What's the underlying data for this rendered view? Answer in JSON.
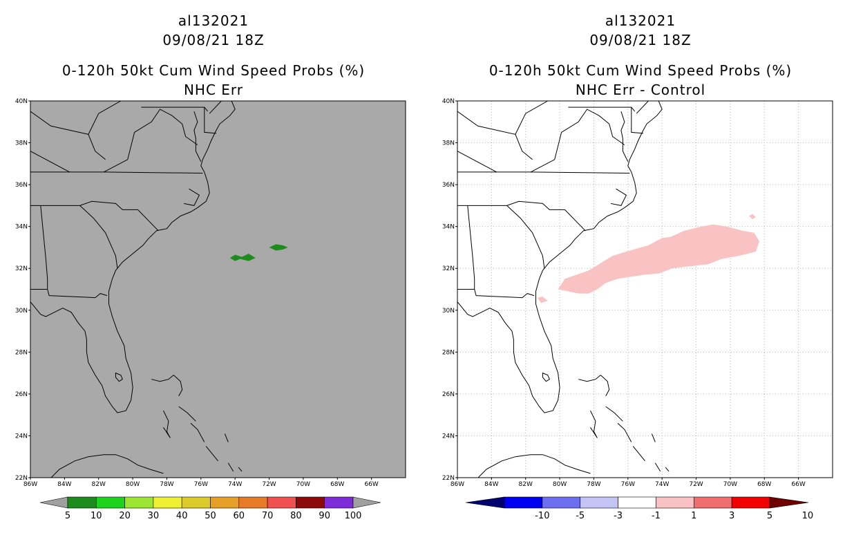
{
  "left_panel": {
    "storm_id": "al132021",
    "date_time": "09/08/21 18Z",
    "product": "0-120h 50kt Cum Wind Speed Probs (%)",
    "subtitle": "NHC Err",
    "colorbar": {
      "labels": [
        "5",
        "10",
        "20",
        "30",
        "40",
        "50",
        "60",
        "70",
        "80",
        "90",
        "100"
      ],
      "colors": [
        "#a0a0a0",
        "#1c8c1c",
        "#1ed21e",
        "#9be632",
        "#f0f032",
        "#dccb2a",
        "#e6a028",
        "#e87b28",
        "#f05050",
        "#8c0a0a",
        "#7e2bd8",
        "#a0a0a0"
      ]
    }
  },
  "right_panel": {
    "storm_id": "al132021",
    "date_time": "09/08/21 18Z",
    "product": "0-120h 50kt Cum Wind Speed Probs (%)",
    "subtitle": "NHC Err - Control",
    "colorbar": {
      "labels": [
        "-10",
        "-5",
        "-3",
        "-1",
        "1",
        "3",
        "5",
        "10"
      ],
      "colors": [
        "#00006e",
        "#0000f0",
        "#6e6ef0",
        "#c3c3f5",
        "#ffffff",
        "#fac3c3",
        "#f06e6e",
        "#f00000",
        "#6e0000"
      ]
    }
  },
  "axes": {
    "lat_ticks": [
      "40N",
      "38N",
      "36N",
      "34N",
      "32N",
      "30N",
      "28N",
      "26N",
      "24N",
      "22N"
    ],
    "lon_ticks": [
      "86W",
      "84W",
      "82W",
      "80W",
      "78W",
      "76W",
      "74W",
      "72W",
      "70W",
      "68W",
      "66W"
    ],
    "lon_range": [
      -86,
      -64
    ],
    "lat_range": [
      22,
      40
    ]
  },
  "colors": {
    "map_bg_left": "#a9a9a9",
    "map_bg_right": "#ffffff",
    "prob_fill": "#1c8c1c",
    "diff_fill": "#fac3c3"
  }
}
